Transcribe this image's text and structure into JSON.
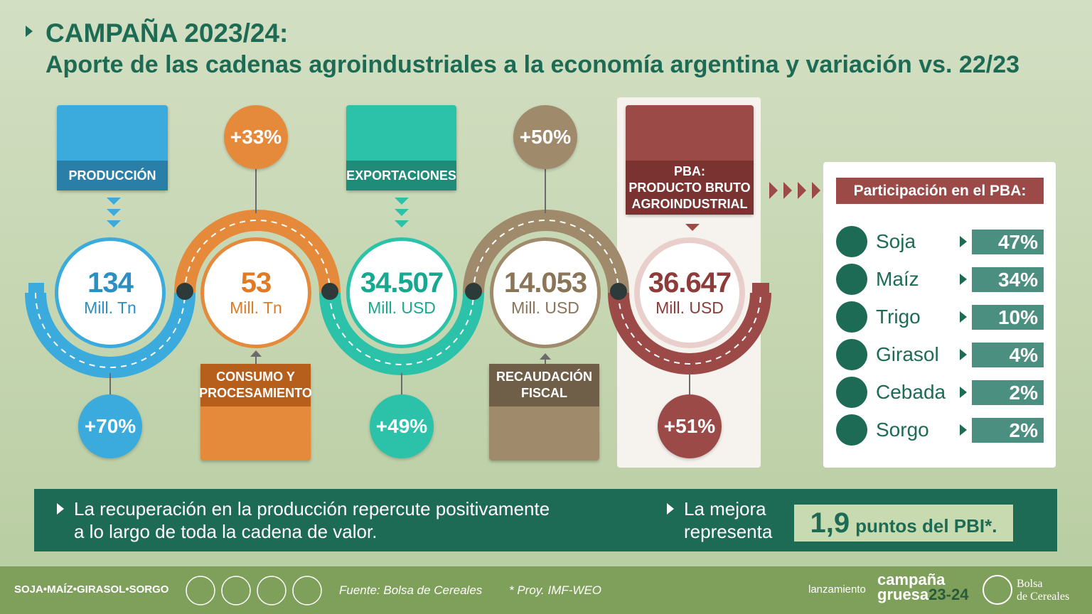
{
  "header": {
    "title": "CAMPAÑA 2023/24:",
    "subtitle": "Aporte de las cadenas agroindustriales a la economía argentina y variación vs. 22/23"
  },
  "stages": [
    {
      "label": [
        "PRODUCCIÓN"
      ],
      "value": "134",
      "unit": "Mill. Tn",
      "change": "+70%"
    },
    {
      "label": [
        "CONSUMO Y",
        "PROCESAMIENTO"
      ],
      "value": "53",
      "unit": "Mill. Tn",
      "change": "+33%"
    },
    {
      "label": [
        "EXPORTACIONES"
      ],
      "value": "34.507",
      "unit": "Mill. USD",
      "change": "+49%"
    },
    {
      "label": [
        "RECAUDACIÓN",
        "FISCAL"
      ],
      "value": "14.053",
      "unit": "Mill. USD",
      "change": "+50%"
    },
    {
      "label": [
        "PBA:",
        "PRODUCTO BRUTO",
        "AGROINDUSTRIAL"
      ],
      "value": "36.647",
      "unit": "Mill. USD",
      "change": "+51%"
    }
  ],
  "participation": {
    "title": "Participación en el PBA:",
    "items": [
      {
        "name": "Soja",
        "share": "47%"
      },
      {
        "name": "Maíz",
        "share": "34%"
      },
      {
        "name": "Trigo",
        "share": "10%"
      },
      {
        "name": "Girasol",
        "share": "4%"
      },
      {
        "name": "Cebada",
        "share": "2%"
      },
      {
        "name": "Sorgo",
        "share": "2%"
      }
    ]
  },
  "summary": {
    "text": [
      "La recuperación en la producción repercute positivamente",
      "a lo largo de toda la cadena de valor."
    ],
    "improvement": [
      "La mejora",
      "representa"
    ],
    "highlight_value": "1,9",
    "highlight_text": "puntos del PBI*."
  },
  "footer": {
    "crops": "SOJA•MAÍZ•GIRASOL•SORGO",
    "source": "Fuente: Bolsa de Cereales",
    "note": "* Proy. IMF-WEO",
    "launch": "lanzamiento",
    "campaign": [
      "campaña",
      "gruesa",
      "23-24"
    ],
    "org": [
      "Bolsa",
      "de Cereales"
    ]
  }
}
